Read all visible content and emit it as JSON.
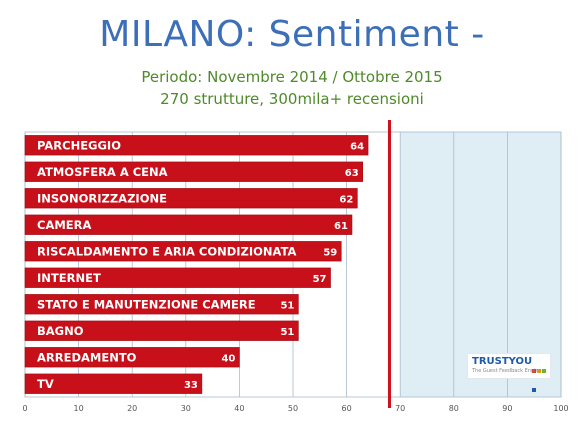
{
  "title": "MILANO: Sentiment -",
  "subtitle_line1": "Periodo: Novembre 2014 / Ottobre 2015",
  "subtitle_line2": "270 strutture, 300mila+ recensioni",
  "colors": {
    "bar": "#c8101a",
    "bar_edge": "#9a0a10",
    "reference_line": "#d0101a",
    "plot_background": "#dfedf4",
    "grid": "#a9bccb"
  },
  "logo": {
    "name": "TRUSTYOU",
    "tagline": "The Guest Feedback Engine",
    "dot_colors": [
      "#e0312b",
      "#f2a300",
      "#6bb431",
      "#1e5aa8"
    ]
  },
  "chart_data": {
    "type": "bar",
    "orientation": "horizontal",
    "categories": [
      "PARCHEGGIO",
      "ATMOSFERA A CENA",
      "INSONORIZZAZIONE",
      "CAMERA",
      "RISCALDAMENTO E ARIA CONDIZIONATA",
      "INTERNET",
      "STATO E MANUTENZIONE CAMERE",
      "BAGNO",
      "ARREDAMENTO",
      "TV"
    ],
    "values": [
      64,
      63,
      62,
      61,
      59,
      57,
      51,
      51,
      40,
      33
    ],
    "xlim": [
      0,
      100
    ],
    "xticks": [
      0,
      10,
      20,
      30,
      40,
      50,
      60,
      70,
      80,
      90,
      100
    ],
    "reference_line_x": 68,
    "shaded_from_x": 70,
    "grid": true
  }
}
